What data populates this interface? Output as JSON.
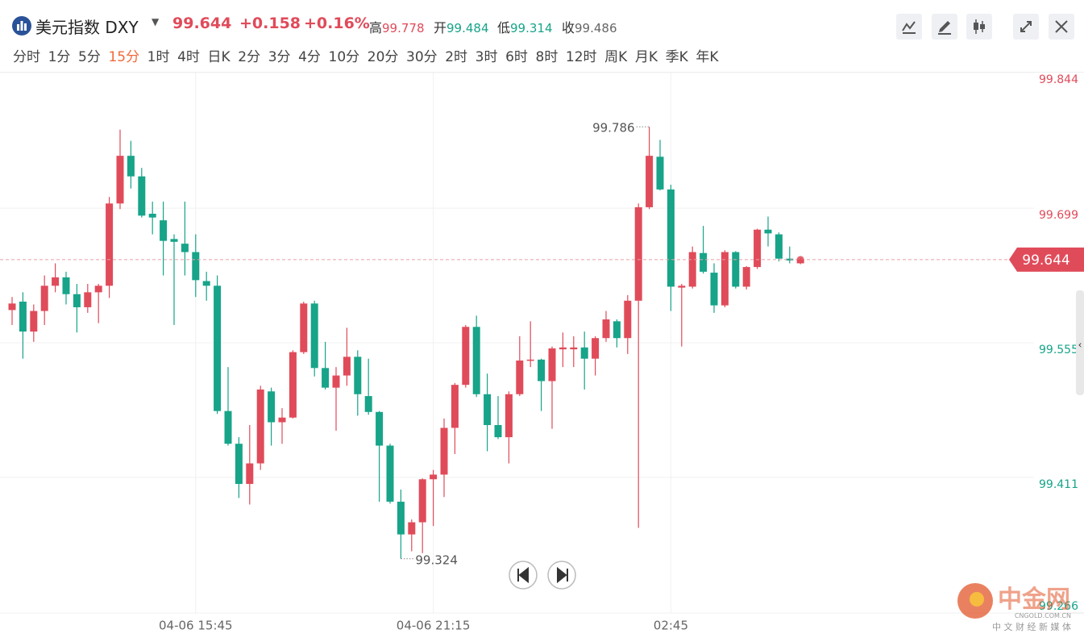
{
  "header": {
    "title": "美元指数 DXY",
    "last": 99.644,
    "change": "+0.158",
    "change_pct": "+0.16%",
    "stats": [
      {
        "label": "高",
        "value": 99.778
      },
      {
        "label": "开",
        "value": 99.484
      },
      {
        "label": "低",
        "value": 99.314
      },
      {
        "label": "收",
        "value": 99.486
      }
    ]
  },
  "toolbar": {
    "intervals": [
      "分时",
      "1分",
      "5分",
      "15分",
      "1时",
      "4时",
      "日K",
      "2分",
      "3分",
      "4分",
      "10分",
      "20分",
      "30分",
      "2时",
      "3时",
      "6时",
      "8时",
      "12时",
      "周K",
      "月K",
      "季K",
      "年K"
    ],
    "active": "15分"
  },
  "watermark": {
    "brand": "中金网",
    "site": "CNGOLD.COM.CN",
    "slogan": "中 文 财 经 新 媒 体"
  },
  "chart_data": {
    "type": "candlestick",
    "categories": [
      null,
      null,
      null,
      null,
      null,
      null,
      null,
      null,
      null,
      null,
      null,
      null,
      null,
      null,
      null,
      null,
      null,
      "04-06 15:45",
      null,
      null,
      null,
      null,
      null,
      null,
      null,
      null,
      null,
      null,
      null,
      null,
      null,
      null,
      null,
      null,
      null,
      null,
      null,
      null,
      null,
      "04-06 21:15",
      null,
      null,
      null,
      null,
      null,
      null,
      null,
      null,
      null,
      null,
      null,
      null,
      null,
      null,
      null,
      null,
      null,
      null,
      null,
      null,
      null,
      "02:45",
      null,
      null,
      null,
      null,
      null,
      null,
      null,
      null,
      null,
      null,
      null,
      null
    ],
    "open": [
      99.59,
      99.599,
      99.567,
      99.589,
      99.616,
      99.625,
      99.607,
      99.593,
      99.609,
      99.616,
      99.704,
      99.755,
      99.733,
      99.693,
      99.686,
      99.666,
      99.661,
      99.652,
      99.621,
      99.616,
      99.482,
      99.447,
      99.404,
      99.426,
      99.503,
      99.47,
      99.475,
      99.545,
      99.597,
      99.528,
      99.507,
      99.52,
      99.54,
      99.498,
      99.481,
      99.445,
      99.385,
      99.35,
      99.363,
      99.409,
      99.414,
      99.464,
      99.51,
      99.572,
      99.5,
      99.467,
      99.454,
      99.5,
      99.536,
      99.537,
      99.514,
      99.548,
      99.548,
      99.55,
      99.538,
      99.56,
      99.578,
      99.56,
      99.6,
      99.7,
      99.754,
      99.719,
      99.614,
      99.615,
      99.651,
      99.63,
      99.595,
      99.652,
      99.615,
      99.636,
      99.676,
      99.671,
      99.645,
      99.64
    ],
    "high": [
      99.604,
      99.609,
      99.596,
      99.627,
      99.64,
      99.631,
      99.618,
      99.618,
      99.618,
      99.711,
      99.783,
      99.771,
      99.742,
      99.706,
      99.706,
      99.671,
      99.706,
      99.671,
      99.631,
      99.627,
      99.529,
      99.454,
      99.467,
      99.509,
      99.507,
      99.485,
      99.547,
      99.599,
      99.6,
      99.556,
      99.529,
      99.571,
      99.547,
      99.538,
      99.482,
      99.447,
      99.398,
      99.366,
      99.41,
      99.419,
      99.474,
      99.512,
      99.574,
      99.584,
      99.522,
      99.498,
      99.503,
      99.562,
      99.578,
      99.538,
      99.551,
      99.566,
      99.562,
      99.567,
      99.562,
      99.589,
      99.58,
      99.606,
      99.704,
      99.786,
      99.772,
      99.724,
      99.618,
      99.658,
      99.68,
      99.64,
      99.654,
      99.653,
      99.637,
      99.677,
      99.69,
      99.673,
      99.658,
      99.646
    ],
    "low": [
      99.574,
      99.538,
      99.556,
      99.574,
      99.609,
      99.596,
      99.566,
      99.587,
      99.576,
      99.603,
      99.698,
      99.72,
      99.689,
      99.671,
      99.627,
      99.574,
      99.627,
      99.604,
      99.6,
      99.479,
      99.445,
      99.389,
      99.382,
      99.419,
      99.445,
      99.447,
      99.474,
      99.543,
      99.519,
      99.505,
      99.461,
      99.509,
      99.477,
      99.478,
      99.385,
      99.383,
      99.324,
      99.332,
      99.33,
      99.359,
      99.39,
      99.436,
      99.507,
      99.497,
      99.439,
      99.452,
      99.426,
      99.498,
      99.529,
      99.482,
      99.463,
      99.529,
      99.529,
      99.505,
      99.52,
      99.556,
      99.55,
      99.543,
      99.357,
      99.698,
      99.718,
      99.589,
      99.551,
      99.613,
      99.629,
      99.587,
      99.593,
      99.613,
      99.612,
      99.634,
      99.658,
      99.642,
      99.64,
      99.639
    ],
    "close": [
      99.597,
      99.567,
      99.589,
      99.616,
      99.625,
      99.607,
      99.593,
      99.609,
      99.616,
      99.704,
      99.755,
      99.733,
      99.691,
      99.689,
      99.664,
      99.663,
      99.652,
      99.622,
      99.616,
      99.482,
      99.447,
      99.404,
      99.426,
      99.505,
      99.47,
      99.475,
      99.545,
      99.597,
      99.528,
      99.507,
      99.52,
      99.54,
      99.5,
      99.481,
      99.445,
      99.385,
      99.35,
      99.363,
      99.409,
      99.414,
      99.464,
      99.51,
      99.572,
      99.5,
      99.467,
      99.454,
      99.5,
      99.536,
      99.537,
      99.514,
      99.549,
      99.55,
      99.55,
      99.538,
      99.56,
      99.58,
      99.56,
      99.6,
      99.7,
      99.755,
      99.719,
      99.615,
      99.616,
      99.652,
      99.631,
      99.595,
      99.652,
      99.615,
      99.636,
      99.676,
      99.672,
      99.645,
      99.643,
      99.644
    ],
    "up_color": "#e04b5a",
    "down_color": "#17a489",
    "last_price": 99.644,
    "high_marker": 99.786,
    "low_marker": 99.324,
    "ylim": [
      99.266,
      99.844
    ],
    "yticks": [
      99.266,
      99.411,
      99.555,
      99.699,
      99.844
    ],
    "grid": true
  }
}
